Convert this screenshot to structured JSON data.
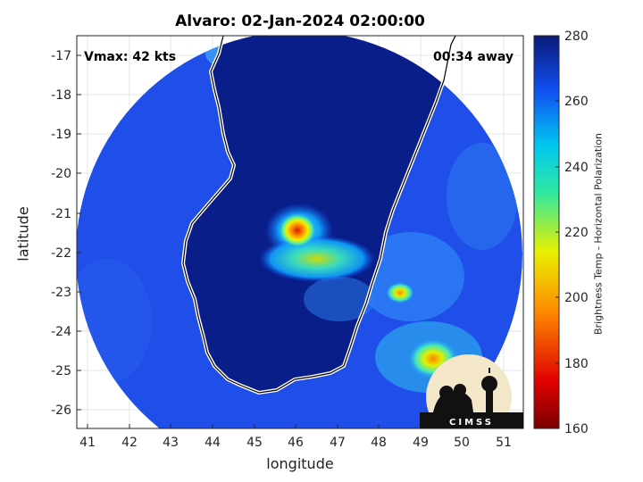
{
  "title": "Alvaro: 02-Jan-2024 02:00:00",
  "vmax_label": "Vmax: 42 kts",
  "away_label": "00:34 away",
  "axes": {
    "xlabel": "longitude",
    "ylabel": "latitude",
    "xticks": [
      "41",
      "42",
      "43",
      "44",
      "45",
      "46",
      "47",
      "48",
      "49",
      "50",
      "51"
    ],
    "yticks": [
      "-17",
      "-18",
      "-19",
      "-20",
      "-21",
      "-22",
      "-23",
      "-24",
      "-25",
      "-26"
    ]
  },
  "colorbar": {
    "label": "Brightness Temp - Horizontal Polarization",
    "ticks": [
      "280",
      "260",
      "240",
      "220",
      "200",
      "180",
      "160"
    ]
  },
  "logo": {
    "text": "CIMSS"
  }
}
